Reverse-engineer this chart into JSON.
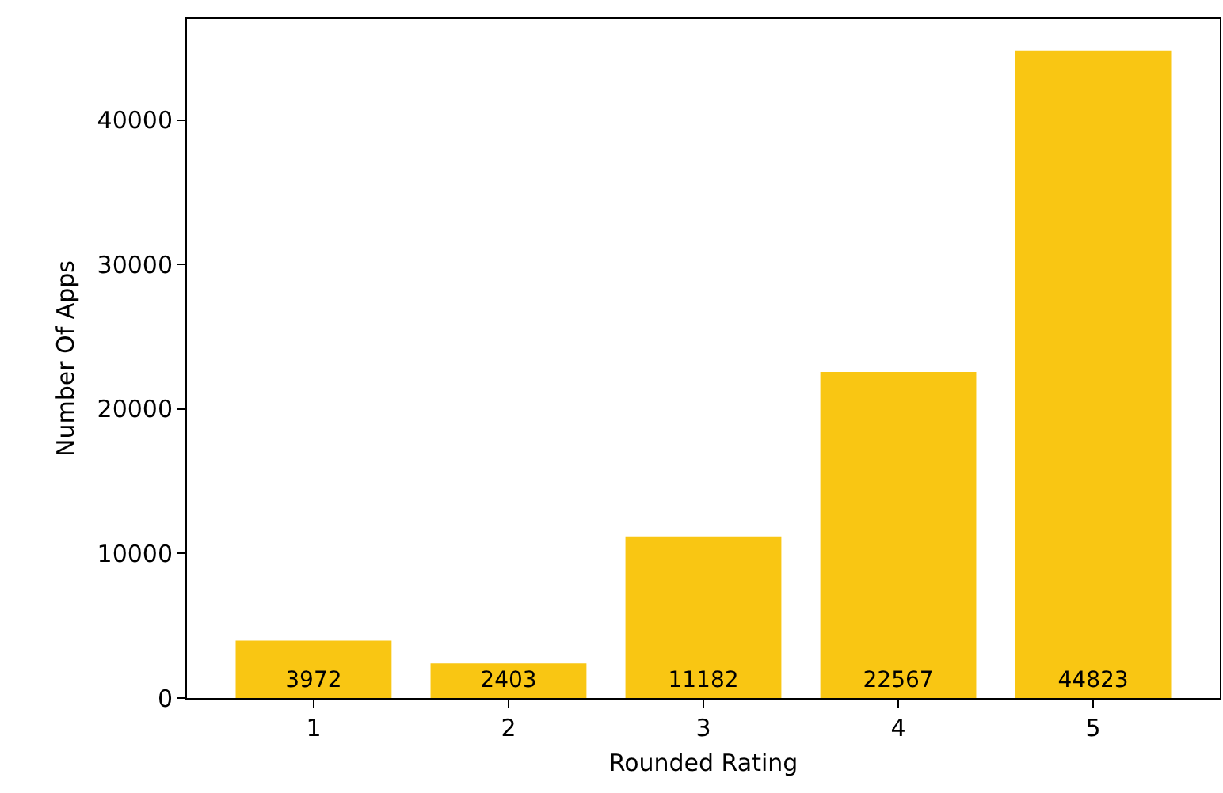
{
  "chart_data": {
    "type": "bar",
    "xlabel": "Rounded Rating",
    "ylabel": "Number Of Apps",
    "categories": [
      "1",
      "2",
      "3",
      "4",
      "5"
    ],
    "values": [
      3972,
      2403,
      11182,
      22567,
      44823
    ],
    "color": "#f9c613",
    "ylim": [
      0,
      47000
    ],
    "yticks": [
      0,
      10000,
      20000,
      30000,
      40000
    ],
    "data_labels": true
  }
}
